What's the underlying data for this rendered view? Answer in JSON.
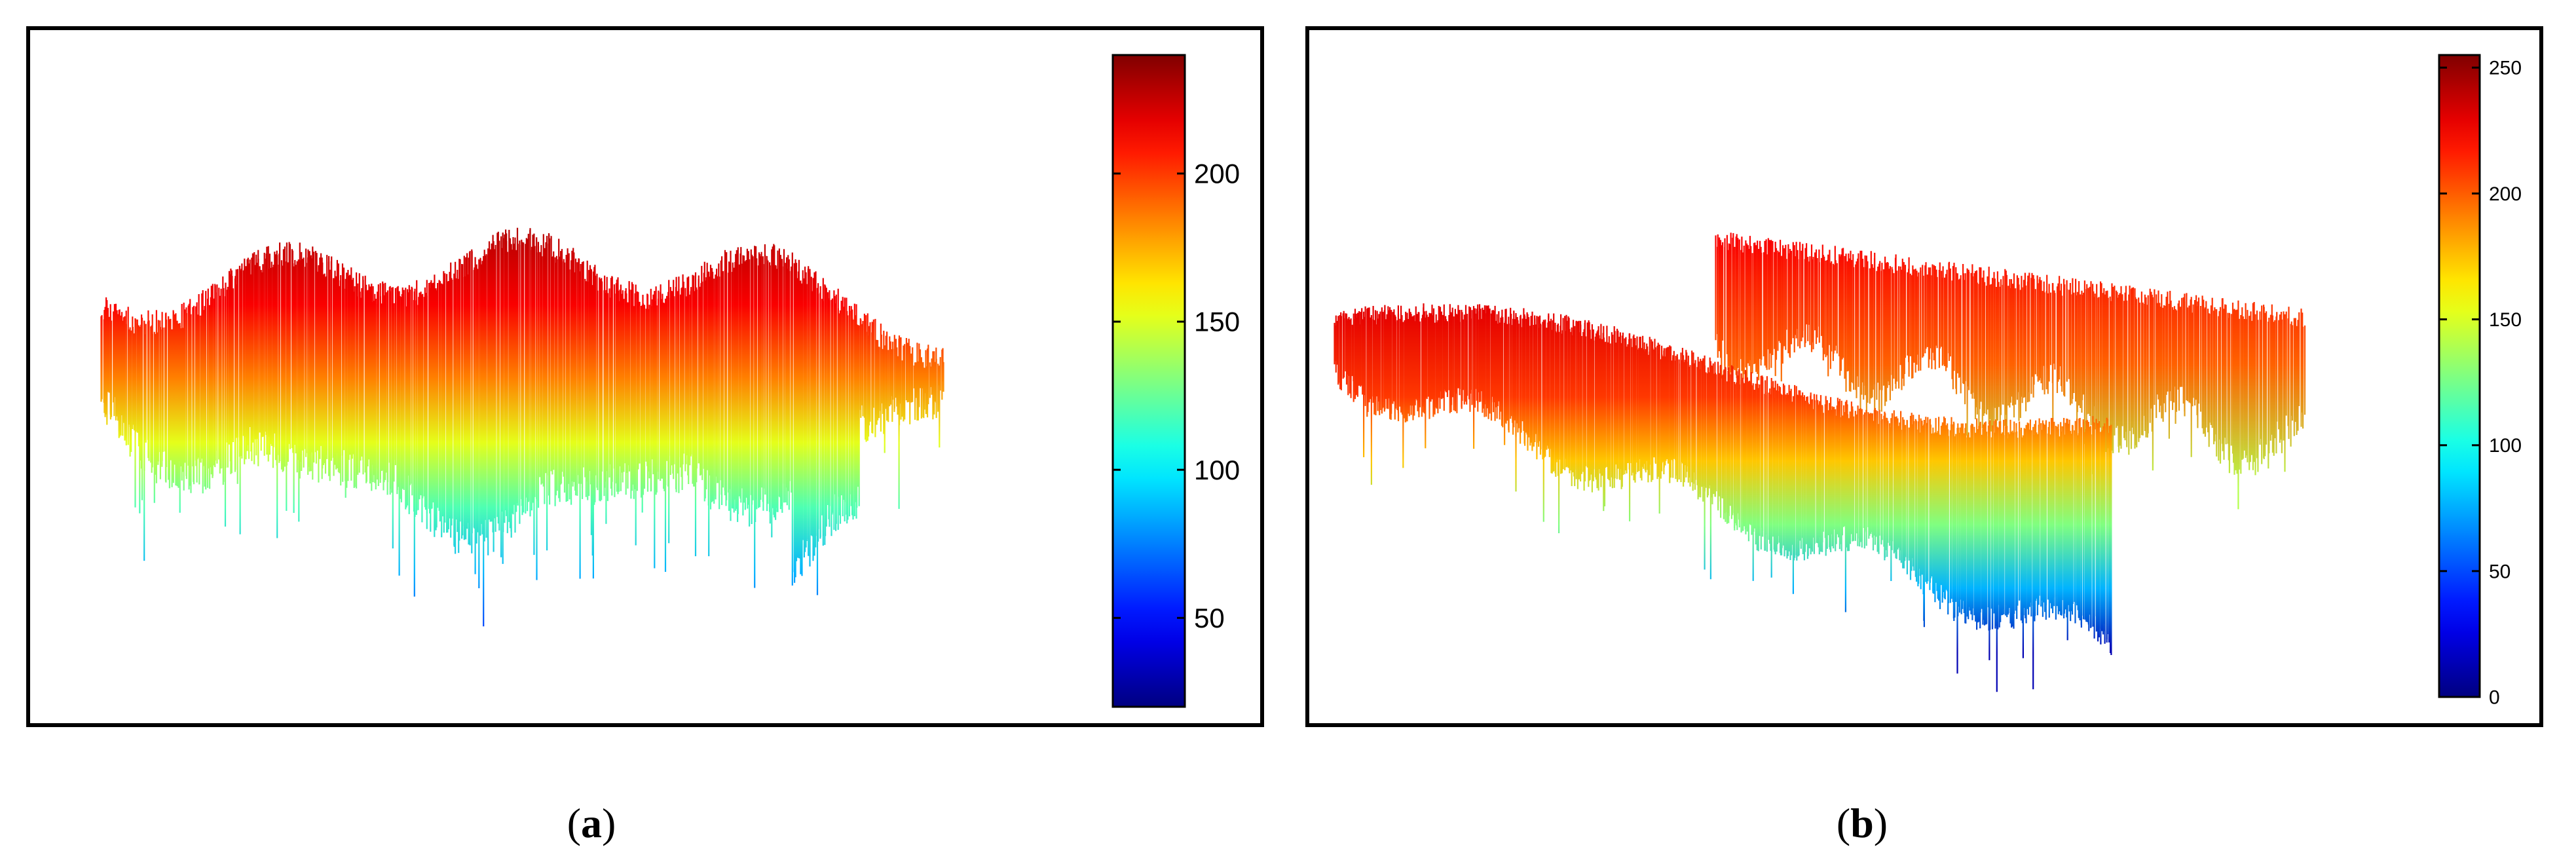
{
  "chart_data": [
    {
      "type": "surface3d",
      "panel_label": "a",
      "colorbar": {
        "colormap": "jet",
        "range": [
          20,
          240
        ],
        "ticks": [
          50,
          100,
          150,
          200
        ]
      },
      "grid": false,
      "legend": "none"
    },
    {
      "type": "surface3d",
      "panel_label": "b",
      "colorbar": {
        "colormap": "jet",
        "range": [
          0,
          255
        ],
        "ticks": [
          0,
          50,
          100,
          150,
          200,
          250
        ]
      },
      "grid": false,
      "legend": "none"
    }
  ],
  "captions": {
    "a_open": "(",
    "a_letter": "a",
    "a_close": ")",
    "b_open": "(",
    "b_letter": "b",
    "b_close": ")"
  }
}
